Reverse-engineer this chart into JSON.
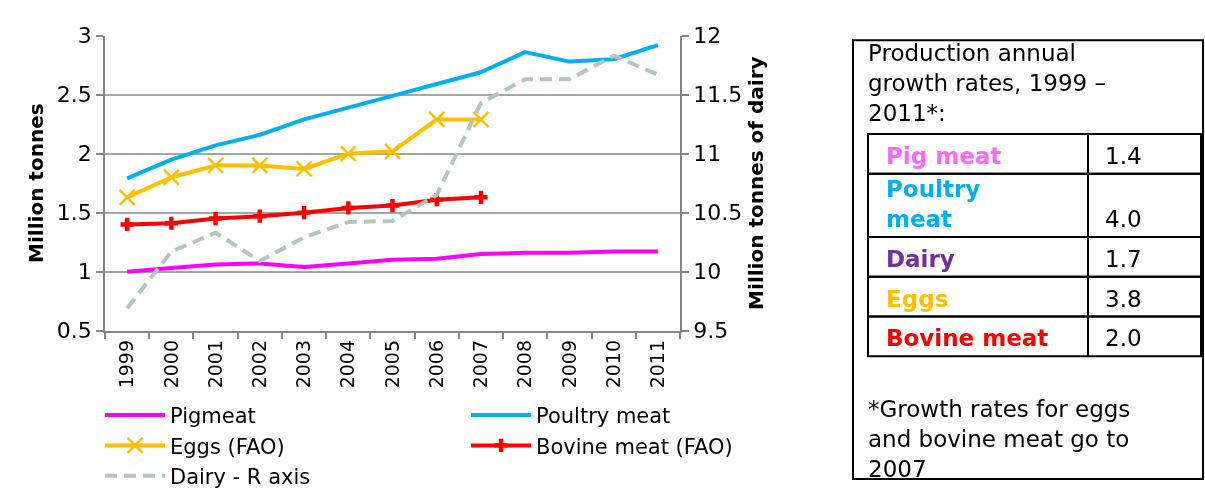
{
  "chart_data": [
    {
      "type": "line",
      "categories": [
        "1999",
        "2000",
        "2001",
        "2002",
        "2003",
        "2004",
        "2005",
        "2006",
        "2007",
        "2008",
        "2009",
        "2010",
        "2011"
      ],
      "ylabel": "Million tonnes",
      "y2label": "Million tonnes of dairy",
      "ylim": [
        0.5,
        3
      ],
      "yticks": [
        0.5,
        1,
        1.5,
        2,
        2.5,
        3
      ],
      "y2lim": [
        9.5,
        12
      ],
      "y2ticks": [
        9.5,
        10,
        10.5,
        11,
        11.5,
        12
      ],
      "grid": "y",
      "legend": "bottom",
      "series": [
        {
          "name": "Pigmeat",
          "color": "#ff00ff",
          "values": [
            1.0,
            1.03,
            1.06,
            1.07,
            1.04,
            1.07,
            1.1,
            1.11,
            1.15,
            1.16,
            1.16,
            1.17,
            1.17
          ]
        },
        {
          "name": "Poultry meat",
          "color": "#00b0f0",
          "values": [
            1.79,
            1.95,
            2.07,
            2.16,
            2.29,
            2.39,
            2.49,
            2.59,
            2.69,
            2.86,
            2.78,
            2.8,
            2.92
          ]
        },
        {
          "name": "Eggs (FAO)",
          "color": "#ffc000",
          "marker": "x",
          "values": [
            1.63,
            1.8,
            1.9,
            1.9,
            1.87,
            2.0,
            2.02,
            2.29,
            2.29,
            null,
            null,
            null,
            null
          ]
        },
        {
          "name": "Bovine meat (FAO)",
          "color": "#ff0000",
          "marker": "cross",
          "values": [
            1.4,
            1.41,
            1.45,
            1.47,
            1.5,
            1.54,
            1.56,
            1.61,
            1.63,
            null,
            null,
            null,
            null
          ]
        },
        {
          "name": "Dairy - R axis",
          "color": "#b4c7bc",
          "line_style": "dashed",
          "axis": "y2",
          "values": [
            9.69,
            10.17,
            10.33,
            10.09,
            10.29,
            10.42,
            10.43,
            10.65,
            11.43,
            11.63,
            11.63,
            11.83,
            11.67
          ]
        }
      ]
    },
    {
      "type": "other",
      "title": "Production annual growth rates, 1999 – 2011*:",
      "categories": [
        "Pig meat",
        "Poultry meat",
        "Dairy",
        "Eggs",
        "Bovine meat"
      ],
      "value_labels": [
        "1.4",
        "4.0",
        "1.7",
        "3.8",
        "2.0"
      ],
      "colors": [
        "#ff66ff",
        "#00b0f0",
        "#7030a0",
        "#ffc000",
        "#ff0000"
      ],
      "annotations": [
        "*Growth rates for eggs and bovine meat go to 2007"
      ]
    }
  ]
}
